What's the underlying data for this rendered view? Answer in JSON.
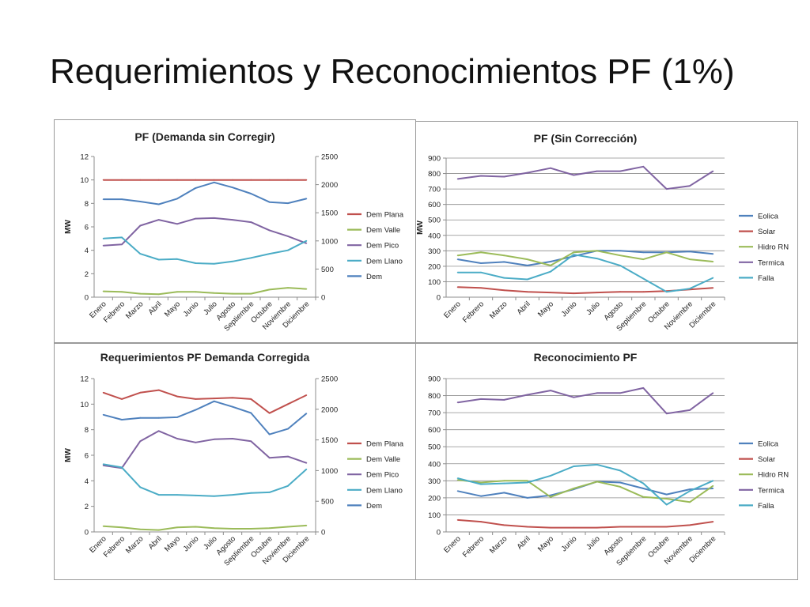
{
  "slide_title": "Requerimientos y Reconocimientos PF (1%)",
  "chart_data": [
    {
      "type": "line",
      "title": "PF (Demanda sin Corregir)",
      "ylabel": "MW",
      "ylim": [
        0,
        12
      ],
      "yticks": [
        "0",
        "2",
        "4",
        "6",
        "8",
        "10",
        "12"
      ],
      "y2lim": [
        0,
        2500
      ],
      "y2ticks": [
        "0",
        "500",
        "1000",
        "1500",
        "2000",
        "2500"
      ],
      "categories": [
        "Enero",
        "Febrero",
        "Marzo",
        "Abril",
        "Mayo",
        "Junio",
        "Julio",
        "Agosto",
        "Septiembre",
        "Octubre",
        "Noviembre",
        "Diciembre"
      ],
      "legend_position": "right",
      "grid": false,
      "series": [
        {
          "name": "Dem Plana",
          "color": "#c0504d",
          "axis": "left",
          "values": [
            10,
            10,
            10,
            10,
            10,
            10,
            10,
            10,
            10,
            10,
            10,
            10
          ]
        },
        {
          "name": "Dem Valle",
          "color": "#9bbb59",
          "axis": "left",
          "values": [
            0.5,
            0.45,
            0.3,
            0.25,
            0.45,
            0.45,
            0.35,
            0.3,
            0.3,
            0.65,
            0.8,
            0.7
          ]
        },
        {
          "name": "Dem Pico",
          "color": "#8064a2",
          "axis": "left",
          "values": [
            4.4,
            4.5,
            6.1,
            6.6,
            6.25,
            6.7,
            6.75,
            6.6,
            6.4,
            5.7,
            5.2,
            4.6
          ]
        },
        {
          "name": "Dem Llano",
          "color": "#4bacc6",
          "axis": "left",
          "values": [
            5.0,
            5.1,
            3.7,
            3.2,
            3.25,
            2.9,
            2.85,
            3.05,
            3.35,
            3.7,
            4.0,
            4.8
          ]
        },
        {
          "name": "Dem",
          "color": "#4f81bd",
          "axis": "right",
          "values": [
            1740,
            1740,
            1700,
            1650,
            1750,
            1940,
            2040,
            1950,
            1840,
            1690,
            1670,
            1750
          ]
        }
      ]
    },
    {
      "type": "line",
      "title": "PF (Sin Corrección)",
      "ylabel": "MW",
      "ylim": [
        0,
        900
      ],
      "yticks": [
        "0",
        "100",
        "200",
        "300",
        "400",
        "500",
        "600",
        "700",
        "800",
        "900"
      ],
      "categories": [
        "Enero",
        "Febrero",
        "Marzo",
        "Abril",
        "Mayo",
        "Junio",
        "Julio",
        "Agosto",
        "Septiembre",
        "Octubre",
        "Noviembre",
        "Diciembre"
      ],
      "legend_position": "right",
      "grid": true,
      "series": [
        {
          "name": "Eolica",
          "color": "#4f81bd",
          "values": [
            245,
            220,
            228,
            205,
            230,
            265,
            300,
            300,
            290,
            290,
            295,
            280
          ]
        },
        {
          "name": "Solar",
          "color": "#c0504d",
          "values": [
            65,
            60,
            45,
            35,
            30,
            25,
            30,
            35,
            35,
            40,
            50,
            60
          ]
        },
        {
          "name": "Hidro RN",
          "color": "#9bbb59",
          "values": [
            270,
            290,
            270,
            245,
            205,
            290,
            300,
            270,
            245,
            290,
            245,
            230
          ]
        },
        {
          "name": "Termica",
          "color": "#8064a2",
          "values": [
            765,
            785,
            780,
            805,
            835,
            790,
            815,
            815,
            845,
            700,
            720,
            815
          ]
        },
        {
          "name": "Falla",
          "color": "#4bacc6",
          "values": [
            160,
            160,
            125,
            115,
            165,
            275,
            250,
            205,
            120,
            35,
            55,
            125
          ]
        }
      ]
    },
    {
      "type": "line",
      "title": "Requerimientos PF Demanda Corregida",
      "ylabel": "MW",
      "ylim": [
        0,
        12
      ],
      "yticks": [
        "0",
        "2",
        "4",
        "6",
        "8",
        "10",
        "12"
      ],
      "y2lim": [
        0,
        2500
      ],
      "y2ticks": [
        "0",
        "500",
        "1000",
        "1500",
        "2000",
        "2500"
      ],
      "categories": [
        "Enero",
        "Febrero",
        "Marzo",
        "Abril",
        "Mayo",
        "Junio",
        "Julio",
        "Agosto",
        "Septiembre",
        "Octubre",
        "Noviembre",
        "Diciembre"
      ],
      "legend_position": "right",
      "grid": false,
      "series": [
        {
          "name": "Dem Plana",
          "color": "#c0504d",
          "axis": "left",
          "values": [
            10.9,
            10.4,
            10.9,
            11.1,
            10.6,
            10.4,
            10.45,
            10.5,
            10.4,
            9.3,
            10.0,
            10.7
          ]
        },
        {
          "name": "Dem Valle",
          "color": "#9bbb59",
          "axis": "left",
          "values": [
            0.45,
            0.35,
            0.2,
            0.15,
            0.35,
            0.4,
            0.3,
            0.25,
            0.25,
            0.3,
            0.4,
            0.5
          ]
        },
        {
          "name": "Dem Pico",
          "color": "#8064a2",
          "axis": "left",
          "values": [
            5.2,
            5.0,
            7.1,
            7.9,
            7.3,
            7.0,
            7.25,
            7.3,
            7.1,
            5.8,
            5.9,
            5.4
          ]
        },
        {
          "name": "Dem Llano",
          "color": "#4bacc6",
          "axis": "left",
          "values": [
            5.3,
            5.05,
            3.5,
            2.9,
            2.9,
            2.85,
            2.8,
            2.9,
            3.05,
            3.1,
            3.6,
            4.9
          ]
        },
        {
          "name": "Dem",
          "color": "#4f81bd",
          "axis": "right",
          "values": [
            1910,
            1830,
            1860,
            1860,
            1870,
            1990,
            2130,
            2040,
            1940,
            1590,
            1680,
            1930
          ]
        }
      ]
    },
    {
      "type": "line",
      "title": "Reconocimiento PF",
      "ylabel": "",
      "ylim": [
        0,
        900
      ],
      "yticks": [
        "0",
        "100",
        "200",
        "300",
        "400",
        "500",
        "600",
        "700",
        "800",
        "900"
      ],
      "categories": [
        "Enero",
        "Febrero",
        "Marzo",
        "Abril",
        "Mayo",
        "Junio",
        "Julio",
        "Agosto",
        "Septiembre",
        "Octubre",
        "Noviembre",
        "Diciembre"
      ],
      "legend_position": "right",
      "grid": true,
      "series": [
        {
          "name": "Eolica",
          "color": "#4f81bd",
          "values": [
            240,
            210,
            230,
            200,
            215,
            250,
            295,
            290,
            255,
            220,
            250,
            255
          ]
        },
        {
          "name": "Solar",
          "color": "#c0504d",
          "values": [
            70,
            60,
            40,
            30,
            25,
            25,
            25,
            30,
            30,
            30,
            40,
            60
          ]
        },
        {
          "name": "Hidro RN",
          "color": "#9bbb59",
          "values": [
            305,
            290,
            300,
            300,
            205,
            255,
            295,
            265,
            205,
            195,
            175,
            270
          ]
        },
        {
          "name": "Termica",
          "color": "#8064a2",
          "values": [
            760,
            780,
            775,
            805,
            830,
            790,
            815,
            815,
            845,
            695,
            715,
            815
          ]
        },
        {
          "name": "Falla",
          "color": "#4bacc6",
          "values": [
            315,
            280,
            285,
            290,
            330,
            385,
            395,
            360,
            285,
            160,
            240,
            300
          ]
        }
      ]
    }
  ]
}
